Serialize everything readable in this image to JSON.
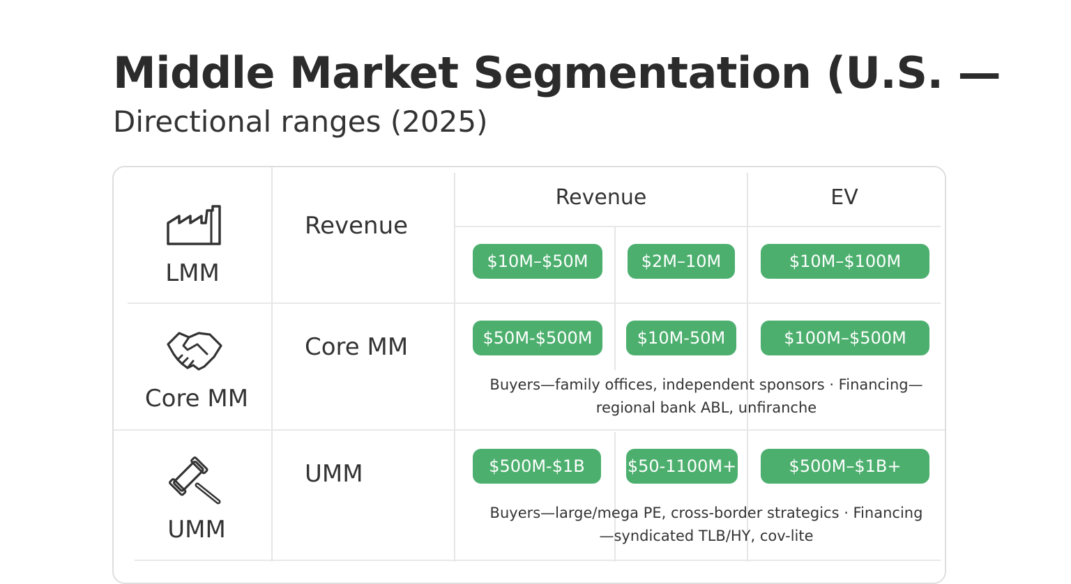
{
  "title": "Middle Market Segmentation (U.S. —",
  "subtitle": "Directional ranges (2025)",
  "columns": {
    "revenue": "Revenue",
    "ev": "EV"
  },
  "rows": [
    {
      "segment": "LMM",
      "icon": "factory-icon",
      "label": "Revenue",
      "pills": [
        "$10M–$50M",
        "$2M–10M",
        "$10M–$100M"
      ],
      "note": ""
    },
    {
      "segment": "Core MM",
      "icon": "handshake-icon",
      "label": "Core MM",
      "pills": [
        "$50M-$500M",
        "$10M-50M",
        "$100M–$500M"
      ],
      "note": "Buyers—family offices, independent sponsors · Financing—regional bank ABL, unfiranche"
    },
    {
      "segment": "UMM",
      "icon": "gavel-icon",
      "label": "UMM",
      "pills": [
        "$500M-$1B",
        "$50-1100M+",
        "$500M–$1B+"
      ],
      "note": "Buyers—large/mega PE, cross-border strategics · Financing—syndicated TLB/HY, cov-lite"
    }
  ],
  "colors": {
    "pill": "#4caf6e",
    "border": "#dedede"
  }
}
